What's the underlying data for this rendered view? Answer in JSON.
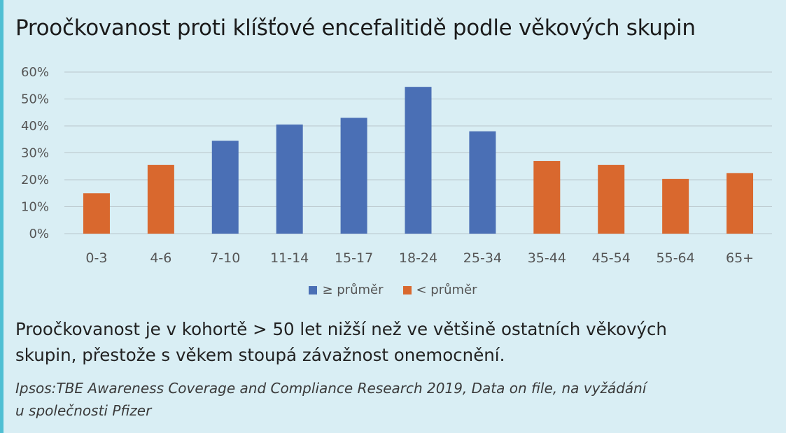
{
  "title": "Proočkovanost proti klíšťové encefalitidě podle věkových skupin",
  "caption_lines": [
    "Proočkovanost je v kohortě > 50 let nižší než ve většině ostatních věkových",
    "skupin, přestože s věkem stoupá závažnost onemocnění."
  ],
  "source_lines": [
    "Ipsos:TBE Awareness Coverage and Compliance Research 2019, Data on file, na vyžádání",
    "u společnosti Pfizer"
  ],
  "colors": {
    "above_average": "#4a6fb5",
    "below_average": "#d9682e",
    "grid": "#b9c6cb",
    "tick": "#555555"
  },
  "chart_data": {
    "type": "bar",
    "title": "Proočkovanost proti klíšťové encefalitidě podle věkových skupin",
    "xlabel": "",
    "ylabel": "",
    "ylim": [
      0,
      60
    ],
    "y_ticks": [
      "0%",
      "10%",
      "20%",
      "30%",
      "40%",
      "50%",
      "60%"
    ],
    "grid": true,
    "legend_position": "bottom",
    "categories": [
      "0-3",
      "4-6",
      "7-10",
      "11-14",
      "15-17",
      "18-24",
      "25-34",
      "35-44",
      "45-54",
      "55-64",
      "65+"
    ],
    "values": [
      15,
      25.5,
      34.5,
      40.5,
      43,
      54.5,
      38,
      27,
      25.5,
      20.3,
      22.5
    ],
    "groups": [
      "< průměr",
      "< průměr",
      "≥ průměr",
      "≥ průměr",
      "≥ průměr",
      "≥ průměr",
      "≥ průměr",
      "< průměr",
      "< průměr",
      "< průměr",
      "< průměr"
    ],
    "legend": [
      {
        "label": "≥ průměr",
        "color": "#4a6fb5"
      },
      {
        "label": "< průměr",
        "color": "#d9682e"
      }
    ]
  }
}
